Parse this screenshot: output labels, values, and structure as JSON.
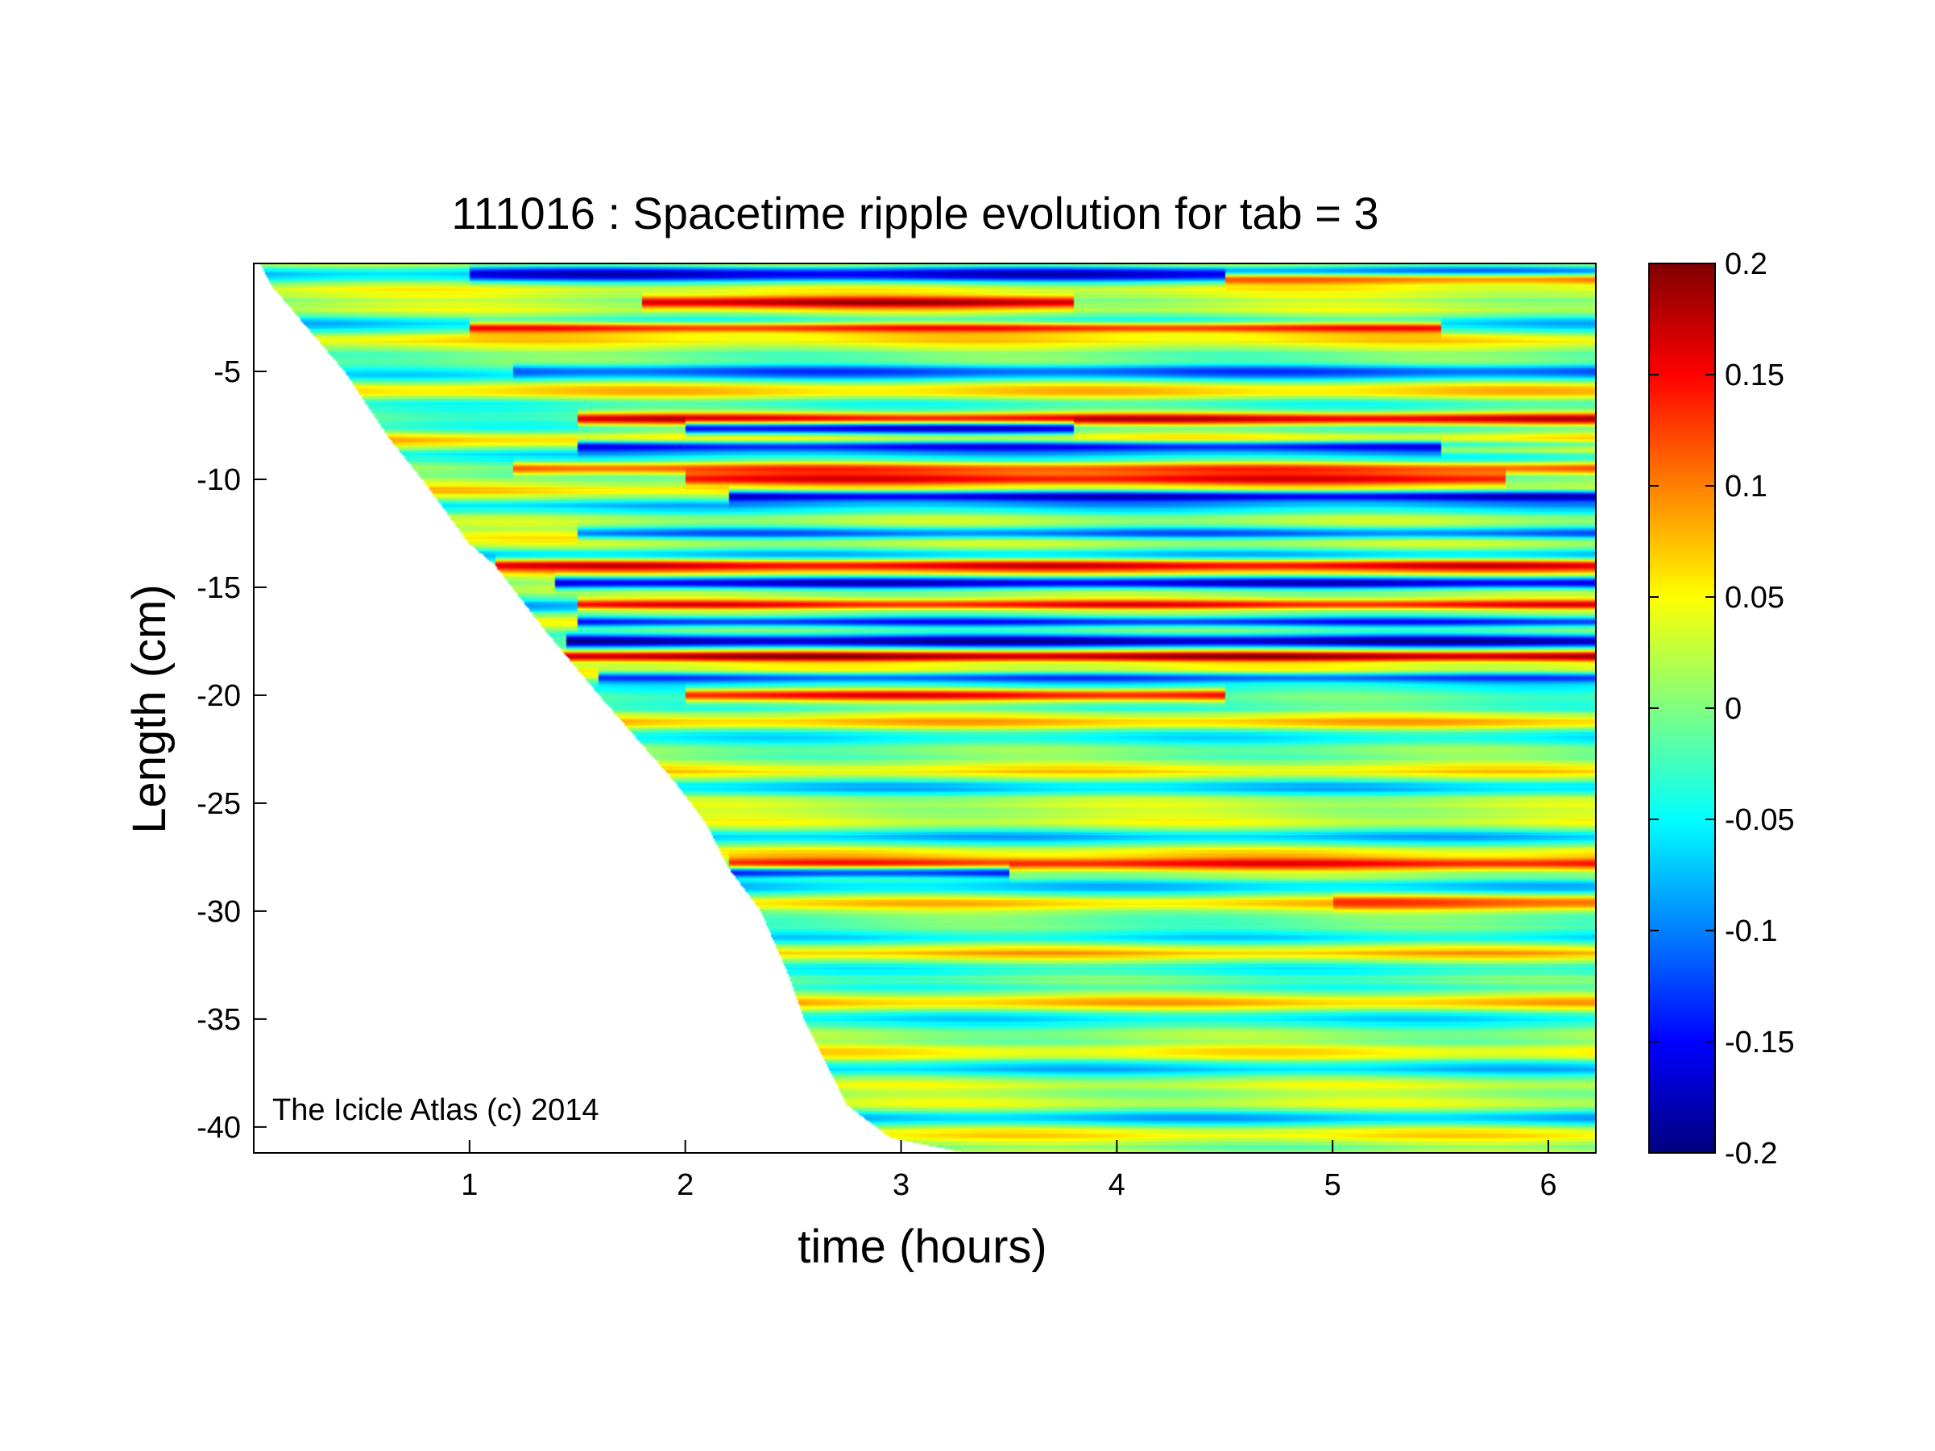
{
  "chart_data": {
    "type": "heatmap",
    "title": "111016 : Spacetime ripple evolution for tab = 3",
    "xlabel": "time (hours)",
    "ylabel": "Length (cm)",
    "xlim": [
      0,
      6.22
    ],
    "ylim": [
      -41.2,
      0
    ],
    "xticks": [
      1,
      2,
      3,
      4,
      5,
      6
    ],
    "yticks": [
      -5,
      -10,
      -15,
      -20,
      -25,
      -30,
      -35,
      -40
    ],
    "colorbar": {
      "colormap": "jet",
      "clim": [
        -0.2,
        0.2
      ],
      "ticks": [
        0.2,
        0.15,
        0.1,
        0.05,
        0,
        -0.05,
        -0.1,
        -0.15,
        -0.2
      ]
    },
    "annotation": "The Icicle Atlas (c) 2014",
    "growth_front": {
      "description_units": "time (hours) at which each length first has data",
      "length": [
        0,
        -1,
        -3,
        -5,
        -8,
        -10,
        -13,
        -14,
        -17,
        -20,
        -24,
        -26,
        -28,
        -30,
        -33,
        -35,
        -37,
        -39,
        -40.5,
        -41.2
      ],
      "time": [
        0.03,
        0.08,
        0.25,
        0.42,
        0.62,
        0.78,
        1.0,
        1.12,
        1.35,
        1.6,
        1.95,
        2.1,
        2.2,
        2.35,
        2.48,
        2.55,
        2.65,
        2.75,
        2.95,
        3.3
      ]
    },
    "strong_bands": [
      {
        "length": -0.5,
        "t_start": 1.0,
        "t_end": 6.22,
        "value": -0.17
      },
      {
        "length": -0.7,
        "t_start": 4.5,
        "t_end": 6.22,
        "value": 0.17
      },
      {
        "length": -1.8,
        "t_start": 1.8,
        "t_end": 3.8,
        "value": 0.18
      },
      {
        "length": -3.0,
        "t_start": 1.0,
        "t_end": 5.5,
        "value": 0.14
      },
      {
        "length": -5.0,
        "t_start": 1.2,
        "t_end": 6.22,
        "value": -0.12
      },
      {
        "length": -7.2,
        "t_start": 1.5,
        "t_end": 6.22,
        "value": 0.17
      },
      {
        "length": -7.6,
        "t_start": 2.0,
        "t_end": 3.8,
        "value": -0.18
      },
      {
        "length": -8.5,
        "t_start": 1.5,
        "t_end": 6.22,
        "value": -0.15
      },
      {
        "length": -8.5,
        "t_start": 5.5,
        "t_end": 6.22,
        "value": 0.17
      },
      {
        "length": -9.5,
        "t_start": 1.2,
        "t_end": 6.22,
        "value": 0.12
      },
      {
        "length": -10.0,
        "t_start": 2.0,
        "t_end": 5.8,
        "value": 0.15
      },
      {
        "length": -10.8,
        "t_start": 2.2,
        "t_end": 6.22,
        "value": -0.17
      },
      {
        "length": -12.5,
        "t_start": 1.5,
        "t_end": 6.22,
        "value": -0.11
      },
      {
        "length": -14.0,
        "t_start": 1.12,
        "t_end": 6.22,
        "value": 0.16
      },
      {
        "length": -14.8,
        "t_start": 1.4,
        "t_end": 6.22,
        "value": -0.17
      },
      {
        "length": -15.8,
        "t_start": 1.5,
        "t_end": 6.22,
        "value": 0.15
      },
      {
        "length": -16.6,
        "t_start": 1.5,
        "t_end": 6.22,
        "value": -0.14
      },
      {
        "length": -17.5,
        "t_start": 1.45,
        "t_end": 6.22,
        "value": -0.19
      },
      {
        "length": -18.2,
        "t_start": 1.4,
        "t_end": 6.22,
        "value": 0.19
      },
      {
        "length": -19.2,
        "t_start": 1.6,
        "t_end": 6.22,
        "value": -0.12
      },
      {
        "length": -20.0,
        "t_start": 2.0,
        "t_end": 4.5,
        "value": 0.15
      },
      {
        "length": -27.8,
        "t_start": 2.2,
        "t_end": 6.22,
        "value": 0.15
      },
      {
        "length": -28.2,
        "t_start": 2.2,
        "t_end": 3.5,
        "value": -0.15
      },
      {
        "length": -29.6,
        "t_start": 5.0,
        "t_end": 6.22,
        "value": 0.12
      }
    ]
  }
}
